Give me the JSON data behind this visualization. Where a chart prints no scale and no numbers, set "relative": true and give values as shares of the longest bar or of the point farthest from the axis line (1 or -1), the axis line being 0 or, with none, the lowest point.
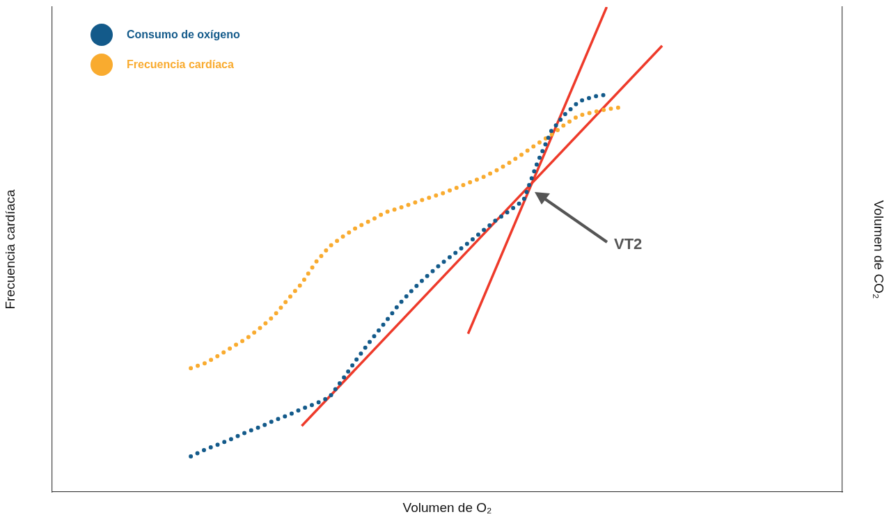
{
  "chart_data": {
    "type": "line",
    "relative": true,
    "xlabel": "Volumen de O₂",
    "ylabel": "Frecuencia cardíaca",
    "y2label": "Volumen de CO₂",
    "legend": "top left",
    "line_style": "dotted",
    "categories": [
      null,
      null,
      null,
      null,
      null,
      null,
      null,
      null,
      null,
      null,
      null,
      null,
      null,
      null,
      null,
      null,
      null,
      null,
      null,
      null,
      null,
      null,
      null,
      null,
      null,
      null,
      null,
      null,
      null,
      null,
      null,
      null,
      null,
      null,
      null,
      null,
      null,
      null,
      null,
      null,
      null,
      null,
      null,
      null,
      null,
      null,
      null,
      null,
      null,
      null,
      null,
      null,
      null,
      null,
      null,
      null,
      null,
      null
    ],
    "annotations": [
      "VT2"
    ],
    "series": [
      {
        "name": "Consumo de oxígeno",
        "color": "#135a8a",
        "values": [
          null,
          null,
          null,
          null,
          null,
          null,
          null,
          null,
          null,
          null,
          0.073,
          0.087,
          0.098,
          0.11,
          0.123,
          0.134,
          0.147,
          0.158,
          0.171,
          0.182,
          0.195,
          0.234,
          0.275,
          0.313,
          0.349,
          0.386,
          0.417,
          0.444,
          0.469,
          0.491,
          0.513,
          0.537,
          0.56,
          0.58,
          0.601,
          0.679,
          0.744,
          0.779,
          0.805,
          0.815,
          0.819,
          null,
          null,
          null,
          null,
          null,
          null,
          null,
          null,
          null,
          null,
          null,
          null,
          null,
          null,
          null,
          null,
          null
        ]
      },
      {
        "name": "Frecuencia cardíaca",
        "color": "#f9ab2f",
        "values": [
          null,
          null,
          null,
          null,
          null,
          null,
          null,
          null,
          null,
          null,
          0.255,
          0.265,
          0.281,
          0.299,
          0.316,
          0.338,
          0.363,
          0.397,
          0.43,
          0.473,
          0.506,
          0.527,
          0.546,
          0.56,
          0.576,
          0.585,
          0.595,
          0.605,
          0.614,
          0.625,
          0.637,
          0.648,
          0.662,
          0.679,
          0.698,
          0.718,
          0.736,
          0.758,
          0.776,
          0.783,
          0.789,
          0.793,
          null,
          null,
          null,
          null,
          null,
          null,
          null,
          null,
          null,
          null,
          null,
          null,
          null,
          null,
          null,
          null
        ]
      },
      {
        "type": "line",
        "line_style": "solid",
        "color": "#ee3a2a",
        "values": [
          null,
          null,
          null,
          null,
          null,
          null,
          null,
          null,
          null,
          null,
          null,
          null,
          null,
          null,
          null,
          null,
          null,
          null,
          0.136,
          null,
          null,
          null,
          null,
          null,
          null,
          null,
          null,
          null,
          null,
          null,
          null,
          null,
          null,
          null,
          null,
          null,
          null,
          null,
          null,
          null,
          null,
          null,
          null,
          null,
          0.92,
          null,
          null,
          null,
          null,
          null,
          null,
          null,
          null,
          null,
          null,
          null,
          null,
          null
        ]
      },
      {
        "type": "line",
        "line_style": "solid",
        "color": "#ee3a2a",
        "values": [
          null,
          null,
          null,
          null,
          null,
          null,
          null,
          null,
          null,
          null,
          null,
          null,
          null,
          null,
          null,
          null,
          null,
          null,
          null,
          null,
          null,
          null,
          null,
          null,
          null,
          null,
          null,
          null,
          null,
          null,
          0.326,
          null,
          null,
          null,
          null,
          null,
          null,
          null,
          null,
          null,
          1,
          null,
          null,
          null,
          null,
          null,
          null,
          null,
          null,
          null,
          null,
          null,
          null,
          null,
          null,
          null,
          null,
          null
        ]
      }
    ]
  }
}
